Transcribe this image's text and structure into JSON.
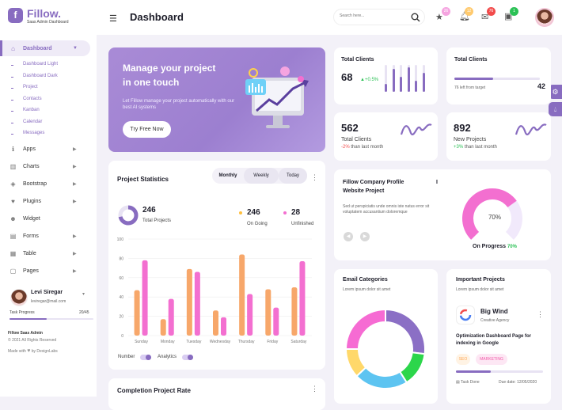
{
  "brand": {
    "logo_letter": "f",
    "title": "Fillow.",
    "subtitle": "Saas Admin Dashboard"
  },
  "sidebar": {
    "dashboard_label": "Dashboard",
    "sub_items": [
      "Dashboard Light",
      "Dashboard Dark",
      "Project",
      "Contacts",
      "Kanban",
      "Calendar",
      "Messages"
    ],
    "items": [
      {
        "label": "Apps",
        "icon": "info-icon"
      },
      {
        "label": "Charts",
        "icon": "chart-icon"
      },
      {
        "label": "Bootstrap",
        "icon": "bootstrap-icon"
      },
      {
        "label": "Plugins",
        "icon": "heart-icon"
      },
      {
        "label": "Widget",
        "icon": "user-icon"
      },
      {
        "label": "Forms",
        "icon": "file-icon"
      },
      {
        "label": "Table",
        "icon": "table-icon"
      },
      {
        "label": "Pages",
        "icon": "pages-icon"
      }
    ],
    "profile": {
      "name": "Levi Siregar",
      "email": "leviregar@mail.com",
      "task_label": "Task Progress",
      "task_value": "20/45",
      "progress": 0.44
    },
    "footer_title": "Fillow Saas Admin",
    "footer_copy": "© 2021 All Rights Reserved",
    "footer_made_prefix": "Made with",
    "footer_made_suffix": "by DexignLabs"
  },
  "header": {
    "title": "Dashboard",
    "search_placeholder": "Search here...",
    "badges": [
      "26",
      "12",
      "76",
      "1"
    ]
  },
  "hero": {
    "title_line1": "Manage your project",
    "title_line2": "in one touch",
    "text": "Let Fillow manage your project automatically with our best AI systems",
    "button": "Try Free Now"
  },
  "total_clients_1": {
    "title": "Total Clients",
    "value": "68",
    "change": "+0.5%",
    "bars": [
      0.3,
      0.85,
      0.55,
      0.9,
      0.4,
      0.7
    ]
  },
  "total_clients_2": {
    "title": "Total Clients",
    "value": "42",
    "sub": "76 left from target",
    "progress": 0.45
  },
  "projects_stat": {
    "value": "562",
    "label": "Total Clients",
    "change": "-2%",
    "change_text": "than last month"
  },
  "new_projects": {
    "value": "892",
    "label": "New Projects",
    "change": "+3%",
    "change_text": "than last month"
  },
  "company_profile": {
    "title_line1": "Fillow Company Profile",
    "title_line2": "Website Project",
    "text": "Sed ut perspiciatis unde omnis iste natus error sit voluptatem accusantium doloremque",
    "progress_percent": "70%",
    "progress_value": 70,
    "on_progress_label": "On Progress",
    "on_progress_value": "70%"
  },
  "project_stats": {
    "title": "Project Statistics",
    "tabs": [
      "Monthly",
      "Weekly",
      "Today"
    ],
    "total": "246",
    "total_label": "Total Projects",
    "ongoing": "246",
    "ongoing_label": "On Going",
    "unfinished": "28",
    "unfinished_label": "Unfinished",
    "legend_number": "Number",
    "legend_analytics": "Analytics"
  },
  "chart_data": {
    "type": "bar",
    "categories": [
      "Sunday",
      "Monday",
      "Tuesday",
      "Wednesday",
      "Thursday",
      "Friday",
      "Saturday"
    ],
    "series": [
      {
        "values": [
          47,
          17,
          69,
          26,
          84,
          48,
          50
        ],
        "color": "#f7a76a"
      },
      {
        "values": [
          78,
          38,
          66,
          19,
          43,
          29,
          77
        ],
        "color": "#f36fd0"
      }
    ],
    "yticks": [
      0,
      20,
      40,
      60,
      80,
      100
    ],
    "ylim": [
      0,
      100
    ]
  },
  "email_categories": {
    "title": "Email Categories",
    "sub": "Lorem ipsum dolor sit amet",
    "slices": [
      {
        "value": 27,
        "color": "#8b6fc5"
      },
      {
        "value": 14,
        "color": "#2cd64b"
      },
      {
        "value": 22,
        "color": "#5dc4f1"
      },
      {
        "value": 12,
        "color": "#ffd86a"
      },
      {
        "value": 25,
        "color": "#f66bd3"
      }
    ]
  },
  "important_projects": {
    "title": "Important Projects",
    "sub": "Lorem ipsum dolor sit amet",
    "company": "Big Wind",
    "company_sub": "Creative Agency",
    "task": "Optimization Dashboard Page for indexing in Google",
    "chips": [
      "SEO",
      "MARKETING"
    ],
    "progress": 0.4,
    "task_done": "Task Done",
    "due": "Due date: 12/05/2020"
  },
  "completion": {
    "title": "Completion Project Rate"
  }
}
